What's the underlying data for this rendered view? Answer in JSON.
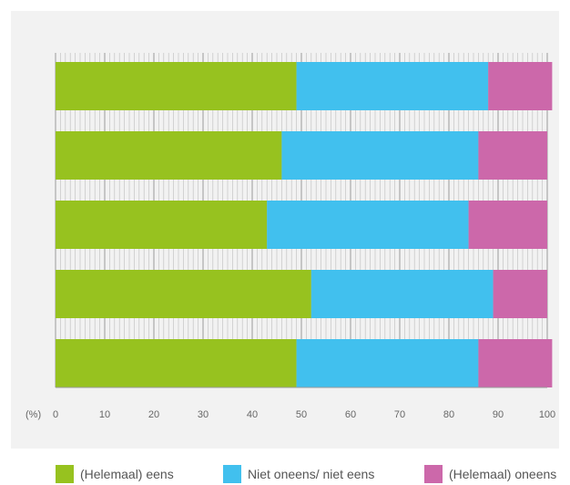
{
  "chart_data": {
    "type": "bar",
    "orientation": "horizontal",
    "stacked": true,
    "categories": [
      "",
      "",
      "",
      "",
      ""
    ],
    "series": [
      {
        "name": "(Helemaal) eens",
        "color": "#97c21f",
        "values": [
          49,
          46,
          43,
          52,
          49
        ]
      },
      {
        "name": "Niet oneens/ niet eens",
        "color": "#41c0ee",
        "values": [
          39,
          40,
          41,
          37,
          37
        ]
      },
      {
        "name": "(Helemaal) oneens",
        "color": "#cc68aa",
        "values": [
          13,
          14,
          16,
          11,
          15
        ]
      }
    ],
    "xlabel": "(%)",
    "xlim": [
      0,
      100
    ],
    "x_ticks": [
      "0",
      "10",
      "20",
      "30",
      "40",
      "50",
      "60",
      "70",
      "80",
      "90",
      "100"
    ],
    "grid": true,
    "legend_position": "bottom"
  }
}
